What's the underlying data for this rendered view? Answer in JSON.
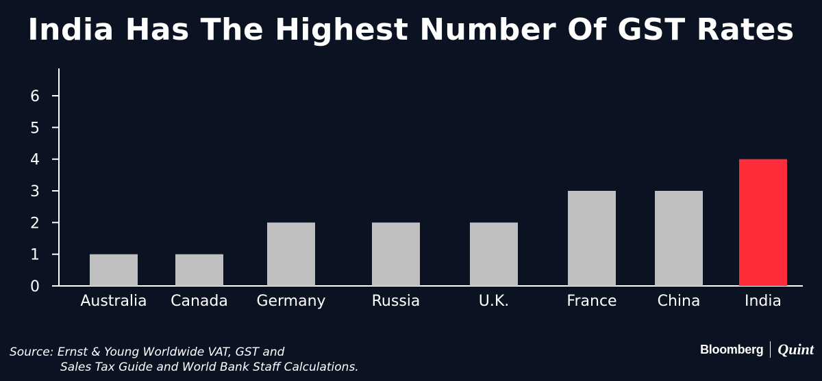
{
  "chart_data": {
    "type": "bar",
    "title": "India Has The Highest Number Of GST Rates",
    "categories": [
      "Australia",
      "Canada",
      "Germany",
      "Russia",
      "U.K.",
      "France",
      "China",
      "India"
    ],
    "values": [
      1,
      1,
      2,
      2,
      2,
      3,
      3,
      4
    ],
    "ylim": [
      0,
      6
    ],
    "yticks": [
      "0",
      "1",
      "2",
      "3",
      "4",
      "5",
      "6"
    ],
    "xlabel": "",
    "ylabel": "",
    "grid": false,
    "bar_color": "#c0c0c0",
    "highlight_color": "#ff2d3a",
    "highlight_index": 7
  },
  "source": {
    "line1": "Source: Ernst & Young Worldwide VAT, GST and",
    "line2": "Sales Tax Guide and World Bank Staff Calculations."
  },
  "brand": {
    "left": "Bloomberg",
    "right": "Quint"
  }
}
